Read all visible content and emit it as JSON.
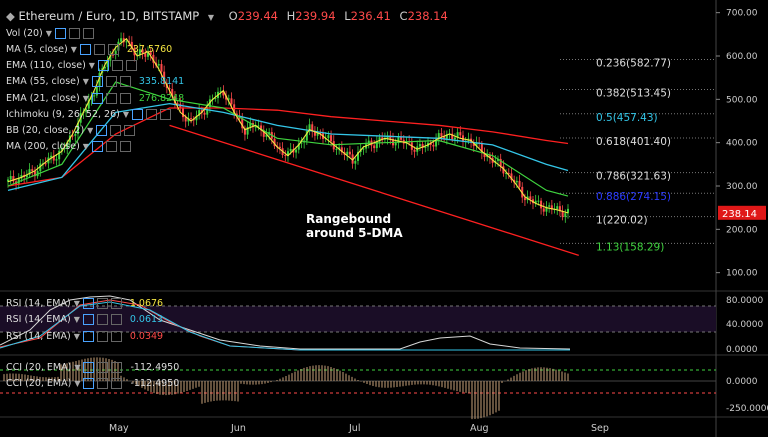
{
  "header": {
    "symbol": "Ethereum / Euro, 1D, BITSTAMP",
    "ohlc": [
      {
        "k": "O",
        "v": "239.44"
      },
      {
        "k": "H",
        "v": "239.94"
      },
      {
        "k": "L",
        "v": "236.41"
      },
      {
        "k": "C",
        "v": "238.14"
      }
    ]
  },
  "indicators": [
    {
      "label": "Vol (20)",
      "value": "",
      "color": "#ddd"
    },
    {
      "label": "MA (5, close)",
      "value": "237.5760",
      "color": "#f5e642"
    },
    {
      "label": "EMA (110, close)",
      "value": "",
      "color": "#ddd"
    },
    {
      "label": "EMA (55, close)",
      "value": "335.8141",
      "color": "#34c6e8"
    },
    {
      "label": "EMA (21, close)",
      "value": "276.8248",
      "color": "#3fd33f"
    },
    {
      "label": "Ichimoku (9, 26, 52, 26)",
      "value": "",
      "color": "#ddd"
    },
    {
      "label": "BB (20, close, 2)",
      "value": "",
      "color": "#ddd"
    },
    {
      "label": "MA (200, close)",
      "value": "",
      "color": "#ddd"
    }
  ],
  "rsi_labels": [
    {
      "label": "RSI (14, EMA)",
      "value": "1.0676",
      "color": "#f5e642"
    },
    {
      "label": "RSI (14, EMA)",
      "value": "0.0613",
      "color": "#34c6e8"
    },
    {
      "label": "RSI (14, EMA)",
      "value": "0.0349",
      "color": "#ff4a4a"
    }
  ],
  "cci_labels": [
    {
      "label": "CCI (20, EMA)",
      "value": "-112.4950",
      "color": "#ddd"
    },
    {
      "label": "CCI (20, EMA)",
      "value": "-112.4950",
      "color": "#ddd"
    }
  ],
  "fib_levels": [
    {
      "text": "0.236(582.77)",
      "y": 582.77,
      "color": "#ddd"
    },
    {
      "text": "0.382(513.45)",
      "y": 513.45,
      "color": "#ddd"
    },
    {
      "text": "0.5(457.43)",
      "y": 457.43,
      "color": "#34c6e8"
    },
    {
      "text": "0.618(401.40)",
      "y": 401.4,
      "color": "#ddd"
    },
    {
      "text": "0.786(321.63)",
      "y": 321.63,
      "color": "#ddd"
    },
    {
      "text": "0.886(274.15)",
      "y": 274.15,
      "color": "#2b3bff"
    },
    {
      "text": "1(220.02)",
      "y": 220.02,
      "color": "#ddd"
    },
    {
      "text": "1.13(158.29)",
      "y": 158.29,
      "color": "#3fd33f"
    }
  ],
  "annotation": [
    "Rangebound",
    "around 5-DMA"
  ],
  "price_badge": "238.14",
  "colors": {
    "up": "#3fd33f",
    "down": "#ff4a4a",
    "ma5": "#f5e642",
    "ema55": "#34c6e8",
    "ema21": "#3fd33f",
    "ema110": "#ff2020",
    "trend": "#ff2020"
  },
  "chart_data": {
    "type": "candlestick",
    "price_axis": {
      "ylim": [
        60,
        720
      ],
      "ticks": [
        "100.00",
        "200.00",
        "300.00",
        "400.00",
        "500.00",
        "600.00",
        "700.00"
      ]
    },
    "x_labels": [
      "May",
      "Jun",
      "Jul",
      "Aug",
      "Sep"
    ],
    "rsi_axis": {
      "ticks": [
        "80.0000",
        "40.0000",
        "0.0000"
      ]
    },
    "cci_axis": {
      "ticks": [
        "0.0000",
        "-250.0000"
      ]
    },
    "price_series": [
      [
        0,
        310
      ],
      [
        5,
        320
      ],
      [
        10,
        335
      ],
      [
        15,
        360
      ],
      [
        20,
        380
      ],
      [
        24,
        420
      ],
      [
        28,
        470
      ],
      [
        32,
        520
      ],
      [
        36,
        580
      ],
      [
        40,
        620
      ],
      [
        44,
        640
      ],
      [
        48,
        600
      ],
      [
        52,
        610
      ],
      [
        56,
        570
      ],
      [
        60,
        520
      ],
      [
        64,
        470
      ],
      [
        68,
        450
      ],
      [
        72,
        470
      ],
      [
        76,
        500
      ],
      [
        80,
        520
      ],
      [
        84,
        470
      ],
      [
        88,
        430
      ],
      [
        92,
        440
      ],
      [
        96,
        420
      ],
      [
        100,
        390
      ],
      [
        104,
        370
      ],
      [
        108,
        395
      ],
      [
        112,
        430
      ],
      [
        116,
        420
      ],
      [
        120,
        400
      ],
      [
        124,
        380
      ],
      [
        128,
        360
      ],
      [
        132,
        390
      ],
      [
        136,
        400
      ],
      [
        140,
        410
      ],
      [
        144,
        405
      ],
      [
        148,
        400
      ],
      [
        152,
        385
      ],
      [
        156,
        395
      ],
      [
        160,
        410
      ],
      [
        164,
        420
      ],
      [
        168,
        410
      ],
      [
        172,
        405
      ],
      [
        176,
        380
      ],
      [
        180,
        360
      ],
      [
        184,
        340
      ],
      [
        188,
        310
      ],
      [
        192,
        275
      ],
      [
        196,
        260
      ],
      [
        200,
        250
      ],
      [
        204,
        245
      ],
      [
        208,
        238
      ]
    ],
    "ema21_series": [
      [
        0,
        300
      ],
      [
        20,
        350
      ],
      [
        40,
        540
      ],
      [
        60,
        500
      ],
      [
        80,
        480
      ],
      [
        100,
        410
      ],
      [
        120,
        395
      ],
      [
        140,
        400
      ],
      [
        160,
        405
      ],
      [
        180,
        370
      ],
      [
        200,
        290
      ],
      [
        208,
        276.8
      ]
    ],
    "ema55_series": [
      [
        0,
        290
      ],
      [
        20,
        320
      ],
      [
        40,
        470
      ],
      [
        60,
        490
      ],
      [
        80,
        470
      ],
      [
        100,
        440
      ],
      [
        120,
        420
      ],
      [
        140,
        415
      ],
      [
        160,
        410
      ],
      [
        180,
        395
      ],
      [
        200,
        350
      ],
      [
        208,
        335.8
      ]
    ],
    "ema110_series": [
      [
        0,
        300
      ],
      [
        20,
        320
      ],
      [
        40,
        420
      ],
      [
        60,
        480
      ],
      [
        80,
        480
      ],
      [
        100,
        475
      ],
      [
        120,
        460
      ],
      [
        140,
        450
      ],
      [
        160,
        440
      ],
      [
        180,
        425
      ],
      [
        200,
        405
      ],
      [
        208,
        398
      ]
    ],
    "trendline": [
      [
        60,
        440
      ],
      [
        212,
        140
      ]
    ],
    "volume": [],
    "rsi_series": [],
    "cci_series": []
  }
}
